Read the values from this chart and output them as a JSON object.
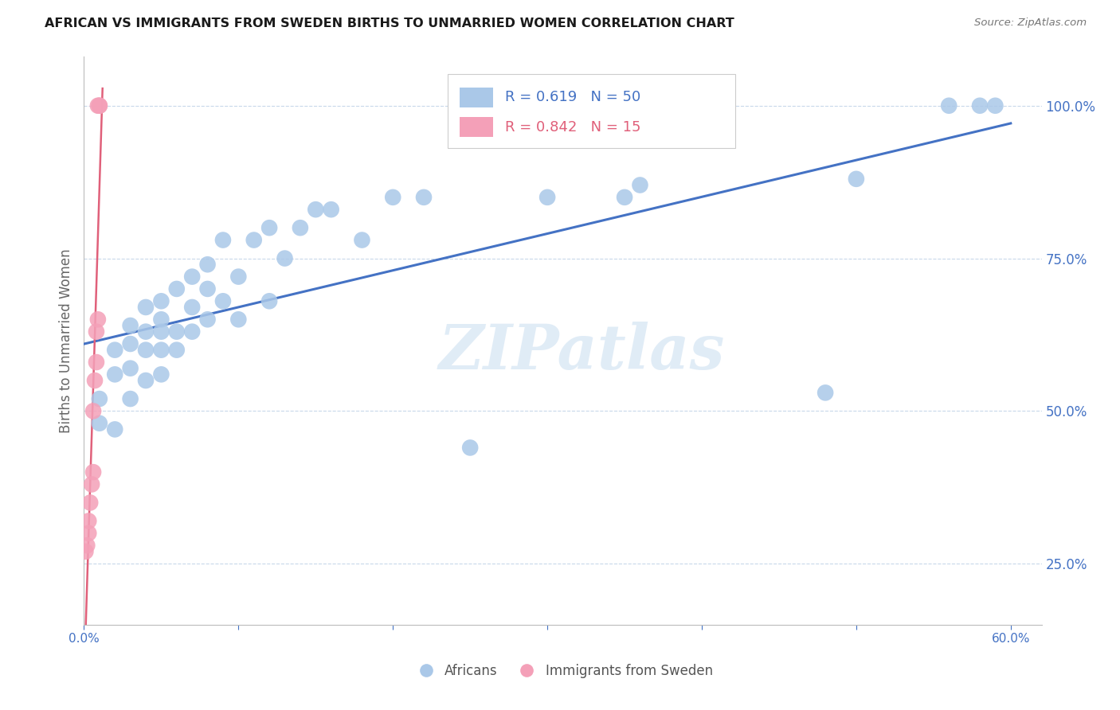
{
  "title": "AFRICAN VS IMMIGRANTS FROM SWEDEN BIRTHS TO UNMARRIED WOMEN CORRELATION CHART",
  "source": "Source: ZipAtlas.com",
  "ylabel_left": "Births to Unmarried Women",
  "legend_r1": "R = 0.619",
  "legend_n1": "N = 50",
  "legend_r2": "R = 0.842",
  "legend_n2": "N = 15",
  "legend_label1": "Africans",
  "legend_label2": "Immigrants from Sweden",
  "watermark": "ZIPatlas",
  "blue_color": "#aac8e8",
  "blue_line_color": "#4472c4",
  "pink_color": "#f4a0b8",
  "pink_line_color": "#e0607a",
  "right_axis_color": "#4472c4",
  "africans_x": [
    0.01,
    0.01,
    0.02,
    0.02,
    0.02,
    0.03,
    0.03,
    0.03,
    0.03,
    0.04,
    0.04,
    0.04,
    0.04,
    0.05,
    0.05,
    0.05,
    0.05,
    0.05,
    0.06,
    0.06,
    0.06,
    0.07,
    0.07,
    0.07,
    0.08,
    0.08,
    0.08,
    0.09,
    0.09,
    0.1,
    0.1,
    0.11,
    0.12,
    0.12,
    0.13,
    0.14,
    0.15,
    0.16,
    0.18,
    0.2,
    0.22,
    0.25,
    0.3,
    0.35,
    0.36,
    0.48,
    0.5,
    0.56,
    0.58,
    0.59
  ],
  "africans_y": [
    0.48,
    0.52,
    0.47,
    0.56,
    0.6,
    0.52,
    0.57,
    0.61,
    0.64,
    0.55,
    0.6,
    0.63,
    0.67,
    0.56,
    0.6,
    0.63,
    0.65,
    0.68,
    0.6,
    0.63,
    0.7,
    0.63,
    0.67,
    0.72,
    0.65,
    0.7,
    0.74,
    0.68,
    0.78,
    0.65,
    0.72,
    0.78,
    0.8,
    0.68,
    0.75,
    0.8,
    0.83,
    0.83,
    0.78,
    0.85,
    0.85,
    0.44,
    0.85,
    0.85,
    0.87,
    0.53,
    0.88,
    1.0,
    1.0,
    1.0
  ],
  "sweden_x": [
    0.001,
    0.002,
    0.003,
    0.003,
    0.004,
    0.005,
    0.006,
    0.006,
    0.007,
    0.008,
    0.008,
    0.009,
    0.009,
    0.01,
    0.01
  ],
  "sweden_y": [
    0.27,
    0.28,
    0.3,
    0.32,
    0.35,
    0.38,
    0.4,
    0.5,
    0.55,
    0.58,
    0.63,
    0.65,
    1.0,
    1.0,
    1.0
  ],
  "xlim": [
    0.0,
    0.62
  ],
  "ylim": [
    0.15,
    1.08
  ],
  "x_ticks": [
    0.0,
    0.1,
    0.2,
    0.3,
    0.4,
    0.5,
    0.6
  ],
  "x_tick_labels": [
    "0.0%",
    "",
    "",
    "",
    "",
    "",
    "60.0%"
  ],
  "y_ticks_right": [
    0.25,
    0.5,
    0.75,
    1.0
  ],
  "y_tick_right_labels": [
    "25.0%",
    "50.0%",
    "75.0%",
    "100.0%"
  ]
}
